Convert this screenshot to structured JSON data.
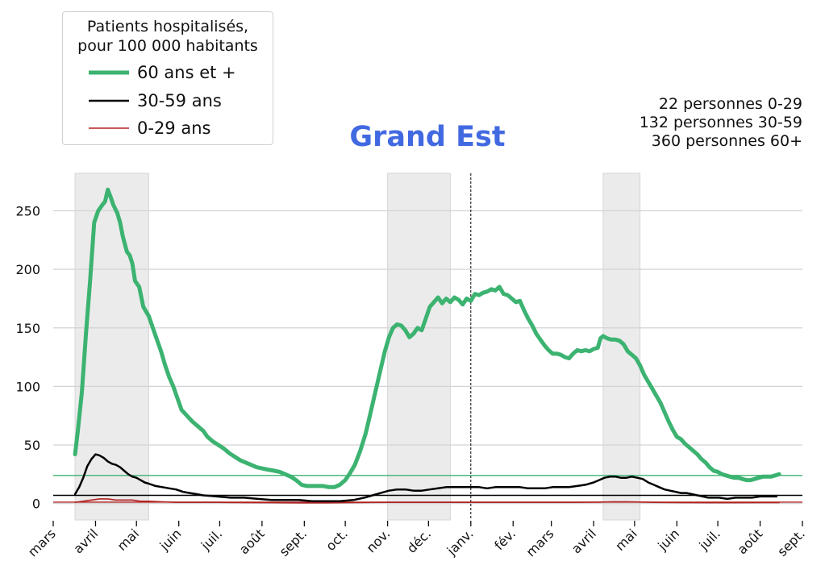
{
  "legend": {
    "title_line1": "Patients hospitalisés,",
    "title_line2": "pour 100 000 habitants",
    "entries": [
      {
        "label": "60 ans et +",
        "color": "#3cb371"
      },
      {
        "label": "30-59 ans",
        "color": "#000000"
      },
      {
        "label": "0-29 ans",
        "color": "#b22222"
      }
    ]
  },
  "title": "Grand Est",
  "counts": {
    "line1": "22 personnes 0-29",
    "line2": "132 personnes 30-59",
    "line3": "360 personnes 60+"
  },
  "chart_data": {
    "type": "line",
    "title": "Grand Est",
    "x_unit": "day index since 2020-03-01",
    "xlim": [
      0,
      549
    ],
    "ylim": [
      -14,
      282
    ],
    "yticks": [
      0,
      50,
      100,
      150,
      200,
      250
    ],
    "month_ticks": [
      {
        "label": "mars",
        "x": 0
      },
      {
        "label": "avril",
        "x": 31
      },
      {
        "label": "mai",
        "x": 61
      },
      {
        "label": "juin",
        "x": 92
      },
      {
        "label": "juil.",
        "x": 122
      },
      {
        "label": "août",
        "x": 153
      },
      {
        "label": "sept.",
        "x": 184
      },
      {
        "label": "oct.",
        "x": 214
      },
      {
        "label": "nov.",
        "x": 245
      },
      {
        "label": "déc.",
        "x": 275
      },
      {
        "label": "janv.",
        "x": 306
      },
      {
        "label": "fév.",
        "x": 337
      },
      {
        "label": "mars",
        "x": 365
      },
      {
        "label": "avril",
        "x": 396
      },
      {
        "label": "mai",
        "x": 426
      },
      {
        "label": "juin",
        "x": 457
      },
      {
        "label": "juil.",
        "x": 487
      },
      {
        "label": "août",
        "x": 518
      },
      {
        "label": "sept.",
        "x": 549
      }
    ],
    "lockdowns": [
      [
        16,
        70
      ],
      [
        245,
        291
      ],
      [
        403,
        430
      ]
    ],
    "year_divider_x": 306,
    "grid": "horizontal",
    "series": [
      {
        "name": "60 ans et +",
        "color": "#3cb371",
        "points": [
          [
            16,
            42
          ],
          [
            18,
            62
          ],
          [
            21,
            95
          ],
          [
            24,
            145
          ],
          [
            27,
            190
          ],
          [
            30,
            240
          ],
          [
            33,
            250
          ],
          [
            36,
            255
          ],
          [
            38,
            258
          ],
          [
            40,
            268
          ],
          [
            42,
            262
          ],
          [
            44,
            255
          ],
          [
            47,
            248
          ],
          [
            49,
            240
          ],
          [
            51,
            228
          ],
          [
            54,
            215
          ],
          [
            56,
            212
          ],
          [
            58,
            205
          ],
          [
            60,
            190
          ],
          [
            63,
            185
          ],
          [
            66,
            168
          ],
          [
            70,
            160
          ],
          [
            73,
            150
          ],
          [
            76,
            140
          ],
          [
            79,
            130
          ],
          [
            82,
            118
          ],
          [
            85,
            108
          ],
          [
            88,
            100
          ],
          [
            91,
            90
          ],
          [
            94,
            80
          ],
          [
            98,
            75
          ],
          [
            102,
            70
          ],
          [
            106,
            66
          ],
          [
            110,
            62
          ],
          [
            113,
            57
          ],
          [
            117,
            53
          ],
          [
            121,
            50
          ],
          [
            125,
            47
          ],
          [
            129,
            43
          ],
          [
            133,
            40
          ],
          [
            137,
            37
          ],
          [
            141,
            35
          ],
          [
            145,
            33
          ],
          [
            149,
            31
          ],
          [
            153,
            30
          ],
          [
            157,
            29
          ],
          [
            162,
            28
          ],
          [
            166,
            27
          ],
          [
            170,
            25
          ],
          [
            174,
            23
          ],
          [
            178,
            20
          ],
          [
            182,
            16
          ],
          [
            186,
            15
          ],
          [
            190,
            15
          ],
          [
            194,
            15
          ],
          [
            198,
            15
          ],
          [
            202,
            14
          ],
          [
            206,
            14
          ],
          [
            210,
            16
          ],
          [
            214,
            20
          ],
          [
            217,
            25
          ],
          [
            221,
            33
          ],
          [
            225,
            45
          ],
          [
            229,
            60
          ],
          [
            233,
            80
          ],
          [
            237,
            100
          ],
          [
            240,
            115
          ],
          [
            243,
            130
          ],
          [
            246,
            142
          ],
          [
            249,
            150
          ],
          [
            252,
            153
          ],
          [
            255,
            152
          ],
          [
            258,
            148
          ],
          [
            261,
            142
          ],
          [
            264,
            145
          ],
          [
            267,
            150
          ],
          [
            270,
            148
          ],
          [
            273,
            158
          ],
          [
            276,
            168
          ],
          [
            279,
            172
          ],
          [
            282,
            176
          ],
          [
            285,
            171
          ],
          [
            288,
            175
          ],
          [
            291,
            172
          ],
          [
            294,
            176
          ],
          [
            297,
            174
          ],
          [
            300,
            170
          ],
          [
            303,
            175
          ],
          [
            306,
            173
          ],
          [
            309,
            179
          ],
          [
            312,
            178
          ],
          [
            315,
            180
          ],
          [
            318,
            181
          ],
          [
            321,
            183
          ],
          [
            324,
            182
          ],
          [
            327,
            185
          ],
          [
            330,
            179
          ],
          [
            333,
            178
          ],
          [
            336,
            175
          ],
          [
            339,
            172
          ],
          [
            342,
            173
          ],
          [
            345,
            165
          ],
          [
            348,
            158
          ],
          [
            351,
            152
          ],
          [
            354,
            145
          ],
          [
            357,
            140
          ],
          [
            360,
            135
          ],
          [
            363,
            131
          ],
          [
            366,
            128
          ],
          [
            369,
            128
          ],
          [
            372,
            127
          ],
          [
            375,
            125
          ],
          [
            378,
            124
          ],
          [
            381,
            128
          ],
          [
            384,
            131
          ],
          [
            387,
            130
          ],
          [
            390,
            131
          ],
          [
            393,
            130
          ],
          [
            396,
            132
          ],
          [
            399,
            133
          ],
          [
            401,
            141
          ],
          [
            403,
            143
          ],
          [
            406,
            141
          ],
          [
            409,
            140
          ],
          [
            412,
            140
          ],
          [
            415,
            139
          ],
          [
            418,
            136
          ],
          [
            421,
            130
          ],
          [
            424,
            127
          ],
          [
            427,
            124
          ],
          [
            430,
            118
          ],
          [
            433,
            110
          ],
          [
            436,
            104
          ],
          [
            439,
            98
          ],
          [
            442,
            92
          ],
          [
            445,
            86
          ],
          [
            448,
            78
          ],
          [
            451,
            70
          ],
          [
            454,
            63
          ],
          [
            457,
            57
          ],
          [
            460,
            55
          ],
          [
            463,
            51
          ],
          [
            466,
            48
          ],
          [
            469,
            45
          ],
          [
            472,
            42
          ],
          [
            475,
            38
          ],
          [
            478,
            35
          ],
          [
            481,
            31
          ],
          [
            484,
            28
          ],
          [
            487,
            27
          ],
          [
            490,
            25
          ],
          [
            493,
            24
          ],
          [
            496,
            23
          ],
          [
            499,
            22
          ],
          [
            502,
            22
          ],
          [
            505,
            21
          ],
          [
            508,
            20
          ],
          [
            511,
            20
          ],
          [
            514,
            21
          ],
          [
            517,
            22
          ],
          [
            520,
            23
          ],
          [
            523,
            23
          ],
          [
            526,
            23
          ],
          [
            529,
            24
          ],
          [
            532,
            25
          ]
        ]
      },
      {
        "name": "30-59 ans",
        "color": "#000000",
        "points": [
          [
            16,
            8
          ],
          [
            19,
            14
          ],
          [
            22,
            22
          ],
          [
            25,
            32
          ],
          [
            28,
            38
          ],
          [
            31,
            42
          ],
          [
            34,
            41
          ],
          [
            37,
            39
          ],
          [
            40,
            36
          ],
          [
            43,
            34
          ],
          [
            46,
            33
          ],
          [
            49,
            31
          ],
          [
            52,
            28
          ],
          [
            55,
            25
          ],
          [
            58,
            23
          ],
          [
            61,
            22
          ],
          [
            64,
            20
          ],
          [
            67,
            18
          ],
          [
            70,
            17
          ],
          [
            75,
            15
          ],
          [
            80,
            14
          ],
          [
            85,
            13
          ],
          [
            90,
            12
          ],
          [
            95,
            10
          ],
          [
            100,
            9
          ],
          [
            105,
            8
          ],
          [
            110,
            7
          ],
          [
            120,
            6
          ],
          [
            130,
            5
          ],
          [
            140,
            5
          ],
          [
            150,
            4
          ],
          [
            160,
            3
          ],
          [
            170,
            3
          ],
          [
            180,
            3
          ],
          [
            190,
            2
          ],
          [
            200,
            2
          ],
          [
            210,
            2
          ],
          [
            220,
            3
          ],
          [
            228,
            5
          ],
          [
            234,
            7
          ],
          [
            240,
            9
          ],
          [
            246,
            11
          ],
          [
            252,
            12
          ],
          [
            258,
            12
          ],
          [
            264,
            11
          ],
          [
            270,
            11
          ],
          [
            276,
            12
          ],
          [
            282,
            13
          ],
          [
            288,
            14
          ],
          [
            294,
            14
          ],
          [
            300,
            14
          ],
          [
            306,
            14
          ],
          [
            312,
            14
          ],
          [
            318,
            13
          ],
          [
            324,
            14
          ],
          [
            330,
            14
          ],
          [
            336,
            14
          ],
          [
            342,
            14
          ],
          [
            348,
            13
          ],
          [
            354,
            13
          ],
          [
            360,
            13
          ],
          [
            366,
            14
          ],
          [
            372,
            14
          ],
          [
            378,
            14
          ],
          [
            384,
            15
          ],
          [
            390,
            16
          ],
          [
            396,
            18
          ],
          [
            400,
            20
          ],
          [
            404,
            22
          ],
          [
            408,
            23
          ],
          [
            412,
            23
          ],
          [
            416,
            22
          ],
          [
            420,
            22
          ],
          [
            424,
            23
          ],
          [
            428,
            22
          ],
          [
            432,
            21
          ],
          [
            436,
            18
          ],
          [
            440,
            16
          ],
          [
            444,
            14
          ],
          [
            448,
            12
          ],
          [
            452,
            11
          ],
          [
            456,
            10
          ],
          [
            460,
            9
          ],
          [
            464,
            9
          ],
          [
            468,
            8
          ],
          [
            472,
            7
          ],
          [
            476,
            6
          ],
          [
            480,
            5
          ],
          [
            484,
            5
          ],
          [
            488,
            5
          ],
          [
            494,
            4
          ],
          [
            500,
            5
          ],
          [
            506,
            5
          ],
          [
            512,
            5
          ],
          [
            518,
            6
          ],
          [
            524,
            6
          ],
          [
            530,
            6
          ]
        ]
      },
      {
        "name": "0-29 ans",
        "color": "#b22222",
        "points": [
          [
            16,
            1
          ],
          [
            22,
            2
          ],
          [
            28,
            3
          ],
          [
            34,
            4
          ],
          [
            40,
            4
          ],
          [
            46,
            3
          ],
          [
            52,
            3
          ],
          [
            58,
            3
          ],
          [
            64,
            2
          ],
          [
            70,
            2
          ],
          [
            80,
            1.5
          ],
          [
            90,
            1
          ],
          [
            100,
            1
          ],
          [
            120,
            1
          ],
          [
            140,
            0.8
          ],
          [
            160,
            0.7
          ],
          [
            180,
            0.6
          ],
          [
            200,
            0.6
          ],
          [
            220,
            0.8
          ],
          [
            240,
            1
          ],
          [
            260,
            1
          ],
          [
            280,
            1
          ],
          [
            300,
            1
          ],
          [
            320,
            1
          ],
          [
            340,
            1
          ],
          [
            360,
            1
          ],
          [
            380,
            1
          ],
          [
            400,
            1.2
          ],
          [
            410,
            1.5
          ],
          [
            420,
            1.5
          ],
          [
            430,
            1.3
          ],
          [
            440,
            1
          ],
          [
            460,
            0.8
          ],
          [
            480,
            0.7
          ],
          [
            500,
            0.7
          ],
          [
            520,
            0.8
          ],
          [
            532,
            0.9
          ]
        ]
      }
    ],
    "reference_lines": [
      {
        "y": 24,
        "color": "#3cb371"
      },
      {
        "y": 7,
        "color": "#000000"
      },
      {
        "y": 1.2,
        "color": "#b22222"
      }
    ]
  }
}
